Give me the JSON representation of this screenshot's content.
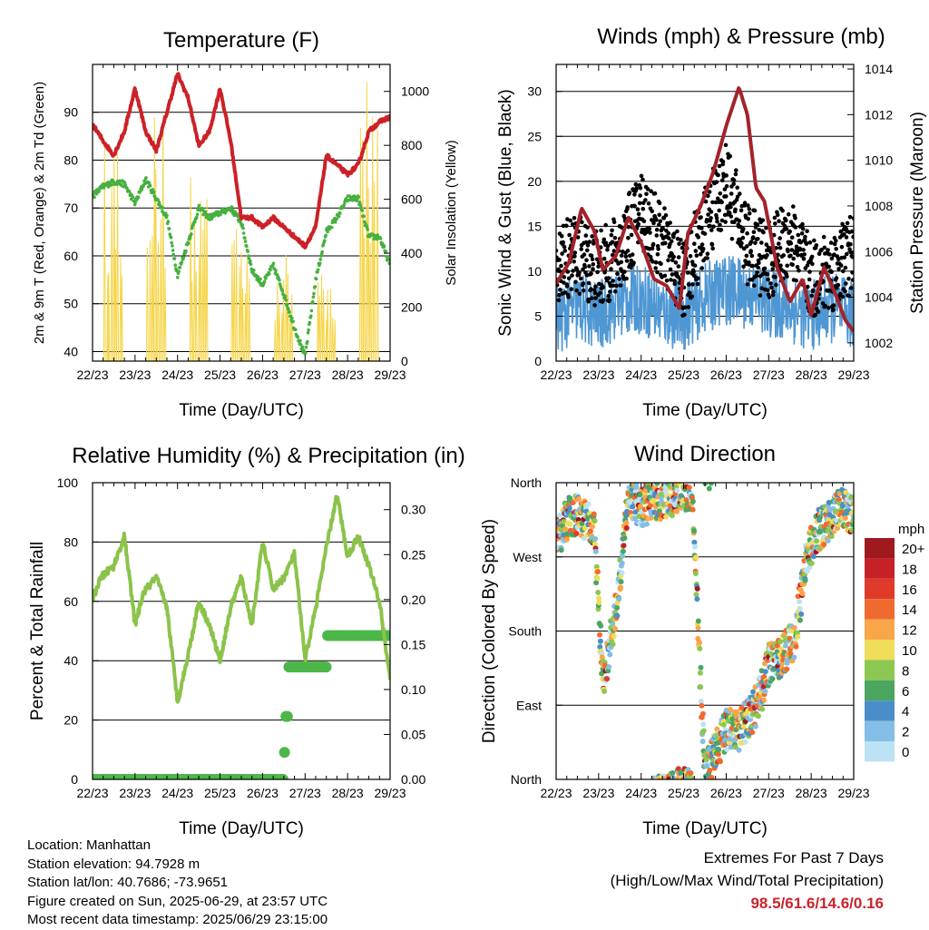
{
  "chart_data": [
    {
      "type": "line",
      "title": "Temperature (F)",
      "xlabel": "Time (Day/UTC)",
      "ylabel": "2m & 9m T (Red, Orange) & 2m Td (Green)",
      "y2label": "Solar Insolation (Yellow)",
      "categories": [
        "22/23",
        "23/23",
        "24/23",
        "25/23",
        "26/23",
        "27/23",
        "28/23",
        "29/23"
      ],
      "ylim": [
        38,
        100
      ],
      "yticks": [
        40,
        50,
        60,
        70,
        80,
        90
      ],
      "y2lim": [
        0,
        1100
      ],
      "y2ticks": [
        0,
        200,
        400,
        600,
        800,
        1000
      ],
      "grid": true,
      "series": [
        {
          "name": "2m T",
          "color": "#cc2127",
          "x": [
            0,
            0.25,
            0.5,
            0.75,
            1,
            1.25,
            1.5,
            1.75,
            2,
            2.25,
            2.5,
            2.75,
            3,
            3.25,
            3.5,
            3.75,
            4,
            4.25,
            4.5,
            4.75,
            5,
            5.25,
            5.5,
            5.75,
            6,
            6.25,
            6.5,
            6.75,
            7
          ],
          "values": [
            87.5,
            84,
            81,
            86,
            95,
            86,
            82,
            90,
            98,
            93,
            83,
            86,
            95,
            84,
            68,
            68,
            66,
            68,
            66,
            64,
            62,
            66,
            81,
            79,
            77,
            79,
            86,
            88,
            89
          ]
        },
        {
          "name": "2m Td",
          "color": "#46b03f",
          "x": [
            0,
            0.25,
            0.5,
            0.75,
            1,
            1.25,
            1.5,
            1.75,
            2,
            2.25,
            2.5,
            2.75,
            3,
            3.25,
            3.5,
            3.75,
            4,
            4.25,
            4.5,
            4.75,
            5,
            5.25,
            5.5,
            5.75,
            6,
            6.25,
            6.5,
            6.75,
            7
          ],
          "values": [
            72.5,
            74.5,
            75.5,
            75,
            71,
            76,
            72,
            68,
            56,
            63,
            70,
            68,
            69,
            70,
            67,
            57,
            54,
            58,
            52,
            45,
            39,
            55,
            65,
            68,
            72,
            72,
            64,
            64,
            58
          ]
        },
        {
          "name": "Solar Insolation",
          "color": "#f6d54a",
          "axis": "y2",
          "x": [
            0,
            0.2,
            0.5,
            0.8,
            1,
            1.2,
            1.5,
            1.8,
            2,
            2.2,
            2.5,
            2.8,
            3,
            3.2,
            3.5,
            3.8,
            4,
            4.2,
            4.5,
            4.8,
            5,
            5.2,
            5.5,
            5.8,
            6,
            6.2,
            6.5,
            6.8,
            7
          ],
          "values": [
            0,
            0,
            850,
            700,
            0,
            0,
            900,
            500,
            0,
            0,
            700,
            850,
            0,
            0,
            600,
            200,
            0,
            0,
            380,
            200,
            0,
            0,
            400,
            600,
            0,
            0,
            1000,
            950,
            0
          ]
        }
      ]
    },
    {
      "type": "scatter",
      "title": "Winds (mph) & Pressure (mb)",
      "xlabel": "Time (Day/UTC)",
      "ylabel": "Sonic Wind & Gust (Blue, Black)",
      "y2label": "Station Pressure (Maroon)",
      "categories": [
        "22/23",
        "23/23",
        "24/23",
        "25/23",
        "26/23",
        "27/23",
        "28/23",
        "29/23"
      ],
      "ylim": [
        0,
        33
      ],
      "yticks": [
        0,
        5,
        10,
        15,
        20,
        25,
        30
      ],
      "y2lim": [
        1001.2,
        1014.2
      ],
      "y2ticks": [
        1002,
        1004,
        1006,
        1008,
        1010,
        1012,
        1014
      ],
      "grid": true,
      "series": [
        {
          "name": "Sonic Wind",
          "color": "#4f97d3",
          "x": [
            0,
            0.5,
            1,
            1.5,
            2,
            2.5,
            3,
            3.5,
            4,
            4.5,
            5,
            5.5,
            6,
            6.5,
            7
          ],
          "values": [
            4.5,
            6,
            5,
            6.5,
            7,
            5.5,
            5,
            7,
            8,
            7.5,
            6.5,
            6,
            5,
            6,
            5
          ]
        },
        {
          "name": "Gust",
          "color": "#000000",
          "x": [
            0,
            0.5,
            1,
            1.5,
            2,
            2.5,
            3,
            3.5,
            4,
            4.5,
            5,
            5.5,
            6,
            6.5,
            7
          ],
          "values": [
            11,
            12,
            10,
            12,
            17,
            13,
            9,
            15,
            20,
            13,
            11,
            14,
            9,
            10,
            12
          ]
        },
        {
          "name": "Station Pressure",
          "color": "#a3232a",
          "axis": "y2",
          "x": [
            0,
            0.3,
            0.6,
            0.9,
            1.1,
            1.4,
            1.7,
            2.0,
            2.3,
            2.6,
            2.9,
            3.1,
            3.4,
            3.7,
            4.0,
            4.3,
            4.5,
            4.7,
            4.9,
            5.2,
            5.5,
            5.8,
            6.0,
            6.3,
            6.6,
            6.8,
            7
          ],
          "values": [
            1004.6,
            1005.5,
            1007.9,
            1006.9,
            1005.2,
            1005.8,
            1007.5,
            1006.4,
            1004.8,
            1004.5,
            1003.5,
            1006.8,
            1008.0,
            1009.5,
            1011.5,
            1013.2,
            1012.0,
            1008.8,
            1008.2,
            1005.3,
            1003.8,
            1004.8,
            1003.2,
            1005.3,
            1004.0,
            1003.0,
            1002.5
          ]
        }
      ]
    },
    {
      "type": "line",
      "title": "Relative Humidity (%) & Precipitation (in)",
      "xlabel": "Time (Day/UTC)",
      "ylabel": "Percent & Total Rainfall",
      "categories": [
        "22/23",
        "23/23",
        "24/23",
        "25/23",
        "26/23",
        "27/23",
        "28/23",
        "29/23"
      ],
      "ylim": [
        0,
        100
      ],
      "yticks": [
        0,
        20,
        40,
        60,
        80,
        100
      ],
      "y2lim": [
        0,
        0.33
      ],
      "y2ticks": [
        0.0,
        0.05,
        0.1,
        0.15,
        0.2,
        0.25,
        0.3
      ],
      "y2ticklabels": [
        "0.00",
        "0.05",
        "0.10",
        "0.15",
        "0.20",
        "0.25",
        "0.30"
      ],
      "grid": true,
      "series": [
        {
          "name": "Relative Humidity",
          "color": "#8bc34a",
          "x": [
            0,
            0.2,
            0.5,
            0.75,
            1,
            1.2,
            1.5,
            1.75,
            2,
            2.25,
            2.5,
            2.75,
            3,
            3.25,
            3.5,
            3.75,
            4,
            4.25,
            4.5,
            4.75,
            5,
            5.25,
            5.5,
            5.75,
            6,
            6.25,
            6.5,
            6.75,
            7
          ],
          "values": [
            61,
            68,
            72,
            82,
            52,
            63,
            68,
            58,
            26,
            42,
            60,
            52,
            40,
            58,
            68,
            52,
            80,
            64,
            68,
            76,
            40,
            58,
            78,
            96,
            75,
            82,
            72,
            60,
            34
          ]
        },
        {
          "name": "Total Precipitation",
          "color": "#4cb748",
          "axis": "y2",
          "x": [
            0,
            1,
            2,
            3,
            4,
            4.5,
            4.6,
            5,
            5.5,
            6,
            7
          ],
          "values": [
            0,
            0,
            0,
            0,
            0,
            0.05,
            0.12,
            0.12,
            0.16,
            0.16,
            0.16
          ]
        }
      ]
    },
    {
      "type": "scatter",
      "title": "Wind Direction",
      "xlabel": "Time (Day/UTC)",
      "ylabel": "Direction (Colored By Speed)",
      "categories": [
        "22/23",
        "23/23",
        "24/23",
        "25/23",
        "26/23",
        "27/23",
        "28/23",
        "29/23"
      ],
      "yticklabels": [
        "North",
        "East",
        "South",
        "West",
        "North"
      ],
      "ylim": [
        0,
        360
      ],
      "legend": {
        "title": "mph",
        "labels": [
          "20+",
          "18",
          "16",
          "14",
          "12",
          "10",
          "8",
          "6",
          "4",
          "2",
          "0"
        ],
        "colors": [
          "#9e1a1f",
          "#c62127",
          "#e03a2a",
          "#f06a30",
          "#f9a54a",
          "#f0dd59",
          "#8cc751",
          "#4ba660",
          "#4a8ec9",
          "#84bde6",
          "#bde2f6"
        ]
      },
      "grid": true,
      "series": [
        {
          "name": "Direction",
          "color": "#4a8ec9",
          "x": [
            0,
            0.3,
            0.6,
            0.9,
            1.1,
            1.4,
            1.7,
            2.0,
            2.3,
            2.6,
            2.9,
            3.2,
            3.5,
            3.8,
            4.0,
            4.3,
            4.6,
            4.8,
            5.0,
            5.3,
            5.6,
            5.9,
            6.1,
            6.4,
            6.7,
            7
          ],
          "values": [
            290,
            320,
            320,
            300,
            120,
            200,
            340,
            330,
            340,
            340,
            350,
            350,
            5,
            40,
            60,
            60,
            80,
            100,
            140,
            150,
            170,
            270,
            300,
            310,
            330,
            320
          ]
        }
      ]
    }
  ],
  "footer": {
    "location": "Location: Manhattan",
    "elevation": "Station elevation: 94.7928 m",
    "latlon": "Station lat/lon: 40.7686; -73.9651",
    "created": "Figure created on Sun, 2025-06-29, at 23:57 UTC",
    "recent": "Most recent data timestamp: 2025/06/29 23:15:00"
  },
  "extremes": {
    "title": "Extremes For Past 7 Days",
    "subtitle": "(High/Low/Max Wind/Total Precipitation)",
    "values": "98.5/61.6/14.6/0.16"
  }
}
